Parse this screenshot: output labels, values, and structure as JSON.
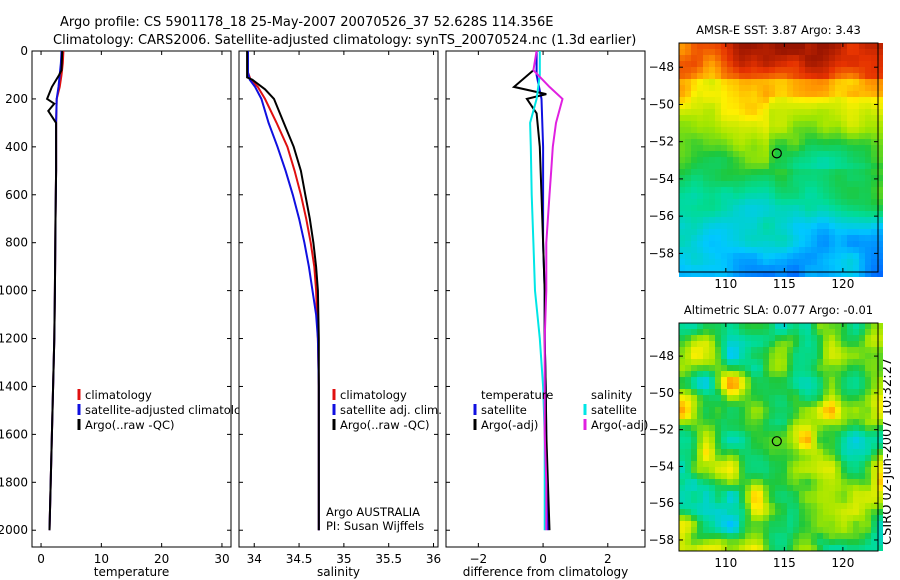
{
  "title": {
    "line1": "Argo profile: CS 5901178_18 25-May-2007 20070526_37 52.628S 114.356E",
    "line2": "Climatology: CARS2006. Satellite-adjusted climatology: synTS_20070524.nc (1.3d earlier)"
  },
  "side_text": "CSIRO 02-Jun-2007 10:32:27",
  "colors": {
    "climatology": "#e01010",
    "satellite": "#1010e0",
    "argo": "#000000",
    "sat_temp": "#00e6e6",
    "sat_sal": "#e020e0"
  },
  "chart_data": [
    {
      "type": "line",
      "name": "temperature",
      "xlabel": "temperature",
      "xlim": [
        -1.5,
        31.5
      ],
      "xticks": [
        0,
        10,
        20,
        30
      ],
      "ylim": [
        0,
        2070
      ],
      "yticks": [
        0,
        200,
        400,
        600,
        800,
        1000,
        1200,
        1400,
        1600,
        1800,
        2000
      ],
      "yaxis_reversed": true,
      "series": [
        {
          "name": "climatology",
          "color": "#e01010",
          "points": [
            [
              3.7,
              0
            ],
            [
              3.6,
              50
            ],
            [
              3.4,
              100
            ],
            [
              3.1,
              150
            ],
            [
              2.6,
              200
            ],
            [
              2.5,
              300
            ],
            [
              2.5,
              500
            ],
            [
              2.4,
              700
            ],
            [
              2.3,
              1000
            ],
            [
              2.2,
              1200
            ],
            [
              2.0,
              1400
            ],
            [
              1.8,
              1600
            ],
            [
              1.6,
              1800
            ],
            [
              1.4,
              2000
            ]
          ]
        },
        {
          "name": "satellite-adjusted climatology",
          "color": "#1010e0",
          "points": [
            [
              3.4,
              0
            ],
            [
              3.3,
              50
            ],
            [
              3.1,
              100
            ],
            [
              2.9,
              150
            ],
            [
              2.6,
              200
            ],
            [
              2.5,
              300
            ],
            [
              2.5,
              500
            ],
            [
              2.4,
              700
            ],
            [
              2.3,
              1000
            ],
            [
              2.2,
              1200
            ],
            [
              2.0,
              1400
            ],
            [
              1.8,
              1600
            ],
            [
              1.6,
              1800
            ],
            [
              1.4,
              2000
            ]
          ]
        },
        {
          "name": "Argo(..raw -QC)",
          "color": "#000000",
          "points": [
            [
              3.5,
              0
            ],
            [
              3.4,
              80
            ],
            [
              3.0,
              100
            ],
            [
              1.8,
              150
            ],
            [
              1.0,
              200
            ],
            [
              2.2,
              220
            ],
            [
              1.2,
              250
            ],
            [
              2.5,
              300
            ],
            [
              2.5,
              500
            ],
            [
              2.4,
              700
            ],
            [
              2.3,
              1000
            ],
            [
              2.2,
              1200
            ],
            [
              2.0,
              1400
            ],
            [
              1.8,
              1600
            ],
            [
              1.6,
              1800
            ],
            [
              1.4,
              2000
            ]
          ]
        }
      ],
      "legend": {
        "position": "center-right",
        "entries": [
          {
            "label": "climatology",
            "color": "#e01010"
          },
          {
            "label": "satellite-adjusted climatology",
            "color": "#1010e0"
          },
          {
            "label": "Argo(..raw -QC)",
            "color": "#000000"
          }
        ]
      }
    },
    {
      "type": "line",
      "name": "salinity",
      "xlabel": "salinity",
      "xlim": [
        33.83,
        36.05
      ],
      "xticks": [
        34,
        34.5,
        35,
        35.5,
        36
      ],
      "ylim": [
        0,
        2070
      ],
      "yaxis_reversed": true,
      "series": [
        {
          "name": "climatology",
          "color": "#e01010",
          "points": [
            [
              33.93,
              0
            ],
            [
              33.93,
              90
            ],
            [
              33.96,
              120
            ],
            [
              34.04,
              150
            ],
            [
              34.12,
              200
            ],
            [
              34.25,
              300
            ],
            [
              34.37,
              400
            ],
            [
              34.45,
              500
            ],
            [
              34.52,
              600
            ],
            [
              34.58,
              700
            ],
            [
              34.63,
              800
            ],
            [
              34.67,
              900
            ],
            [
              34.69,
              1000
            ],
            [
              34.71,
              1200
            ],
            [
              34.72,
              1400
            ],
            [
              34.72,
              1600
            ],
            [
              34.72,
              1800
            ],
            [
              34.72,
              2000
            ]
          ]
        },
        {
          "name": "satellite adj. clim.",
          "color": "#1010e0",
          "points": [
            [
              33.93,
              0
            ],
            [
              33.93,
              90
            ],
            [
              33.95,
              120
            ],
            [
              34.01,
              150
            ],
            [
              34.08,
              200
            ],
            [
              34.16,
              300
            ],
            [
              34.26,
              400
            ],
            [
              34.35,
              500
            ],
            [
              34.43,
              600
            ],
            [
              34.5,
              700
            ],
            [
              34.56,
              800
            ],
            [
              34.61,
              900
            ],
            [
              34.65,
              1000
            ],
            [
              34.69,
              1100
            ],
            [
              34.71,
              1200
            ],
            [
              34.72,
              1400
            ],
            [
              34.72,
              1600
            ],
            [
              34.72,
              1800
            ],
            [
              34.72,
              2000
            ]
          ]
        },
        {
          "name": "Argo(..raw -QC)",
          "color": "#000000",
          "points": [
            [
              33.92,
              0
            ],
            [
              33.92,
              80
            ],
            [
              33.92,
              110
            ],
            [
              33.98,
              120
            ],
            [
              34.12,
              160
            ],
            [
              34.22,
              200
            ],
            [
              34.33,
              300
            ],
            [
              34.44,
              400
            ],
            [
              34.52,
              500
            ],
            [
              34.57,
              600
            ],
            [
              34.62,
              700
            ],
            [
              34.66,
              800
            ],
            [
              34.69,
              900
            ],
            [
              34.71,
              1000
            ],
            [
              34.72,
              1200
            ],
            [
              34.72,
              1400
            ],
            [
              34.72,
              1600
            ],
            [
              34.72,
              1800
            ],
            [
              34.72,
              2000
            ]
          ]
        }
      ],
      "legend": {
        "position": "center-right",
        "entries": [
          {
            "label": "climatology",
            "color": "#e01010"
          },
          {
            "label": "satellite adj. clim.",
            "color": "#1010e0"
          },
          {
            "label": "Argo(..raw -QC)",
            "color": "#000000"
          }
        ]
      },
      "annotation": [
        "Argo AUSTRALIA",
        "PI: Susan Wijffels"
      ]
    },
    {
      "type": "line",
      "name": "difference from climatology",
      "xlabel": "difference from climatology",
      "xlim": [
        -3,
        3.15
      ],
      "xticks": [
        -2,
        0,
        2
      ],
      "ylim": [
        0,
        2070
      ],
      "yaxis_reversed": true,
      "series": [
        {
          "name": "temperature satellite",
          "color": "#1010e0",
          "points": [
            [
              -0.2,
              0
            ],
            [
              -0.2,
              100
            ],
            [
              -0.05,
              200
            ],
            [
              0,
              400
            ],
            [
              0,
              600
            ],
            [
              0,
              800
            ],
            [
              0.05,
              1000
            ],
            [
              0.05,
              1200
            ],
            [
              0.08,
              1400
            ],
            [
              0.1,
              1600
            ],
            [
              0.12,
              1800
            ],
            [
              0.15,
              2000
            ]
          ]
        },
        {
          "name": "temperature Argo(-adj)",
          "color": "#000000",
          "points": [
            [
              -0.3,
              80
            ],
            [
              -0.9,
              150
            ],
            [
              0.1,
              180
            ],
            [
              -0.5,
              200
            ],
            [
              -0.2,
              260
            ],
            [
              -0.1,
              400
            ],
            [
              -0.05,
              600
            ],
            [
              0,
              800
            ],
            [
              0.05,
              1000
            ],
            [
              0.05,
              1200
            ],
            [
              0.08,
              1400
            ],
            [
              0.1,
              1600
            ],
            [
              0.15,
              1800
            ],
            [
              0.2,
              2000
            ]
          ]
        },
        {
          "name": "salinity satellite",
          "color": "#00e6e6",
          "points": [
            [
              -0.1,
              0
            ],
            [
              -0.1,
              100
            ],
            [
              -0.2,
              200
            ],
            [
              -0.4,
              300
            ],
            [
              -0.38,
              400
            ],
            [
              -0.35,
              600
            ],
            [
              -0.3,
              800
            ],
            [
              -0.25,
              1000
            ],
            [
              -0.1,
              1200
            ],
            [
              0.0,
              1400
            ],
            [
              0.05,
              1600
            ],
            [
              0.05,
              1800
            ],
            [
              0.05,
              2000
            ]
          ]
        },
        {
          "name": "salinity Argo(-adj)",
          "color": "#e020e0",
          "points": [
            [
              -0.2,
              0
            ],
            [
              -0.3,
              80
            ],
            [
              0.2,
              150
            ],
            [
              0.6,
              200
            ],
            [
              0.4,
              300
            ],
            [
              0.3,
              400
            ],
            [
              0.25,
              500
            ],
            [
              0.2,
              600
            ],
            [
              0.15,
              700
            ],
            [
              0.1,
              800
            ],
            [
              0.1,
              1000
            ],
            [
              0.05,
              1200
            ],
            [
              0.05,
              1400
            ],
            [
              0.05,
              1600
            ],
            [
              0.1,
              1800
            ],
            [
              0.1,
              2000
            ]
          ]
        }
      ],
      "legend": {
        "position": "center",
        "columns": [
          {
            "header": "temperature",
            "entries": [
              {
                "label": "satellite",
                "color": "#1010e0"
              },
              {
                "label": "Argo(-adj)",
                "color": "#000000"
              }
            ]
          },
          {
            "header": "salinity",
            "entries": [
              {
                "label": "satellite",
                "color": "#00e6e6"
              },
              {
                "label": "Argo(-adj)",
                "color": "#e020e0"
              }
            ]
          }
        ]
      }
    },
    {
      "type": "heatmap",
      "name": "AMSR-E SST map",
      "title": "AMSR-E SST: 3.87 Argo: 3.43",
      "xlim": [
        106,
        123
      ],
      "ylim": [
        -59,
        -46.7
      ],
      "xticks": [
        110,
        115,
        120
      ],
      "yticks": [
        -48,
        -50,
        -52,
        -54,
        -56,
        -58
      ],
      "marker": {
        "lon": 114.356,
        "lat": -52.628
      }
    },
    {
      "type": "heatmap",
      "name": "Altimetric SLA map",
      "title": "Altimetric SLA: 0.077 Argo: -0.01",
      "xlim": [
        106,
        123
      ],
      "ylim": [
        -58.6,
        -46.2
      ],
      "xticks": [
        110,
        115,
        120
      ],
      "yticks": [
        -48,
        -50,
        -52,
        -54,
        -56,
        -58
      ],
      "marker": {
        "lon": 114.356,
        "lat": -52.628
      }
    }
  ]
}
